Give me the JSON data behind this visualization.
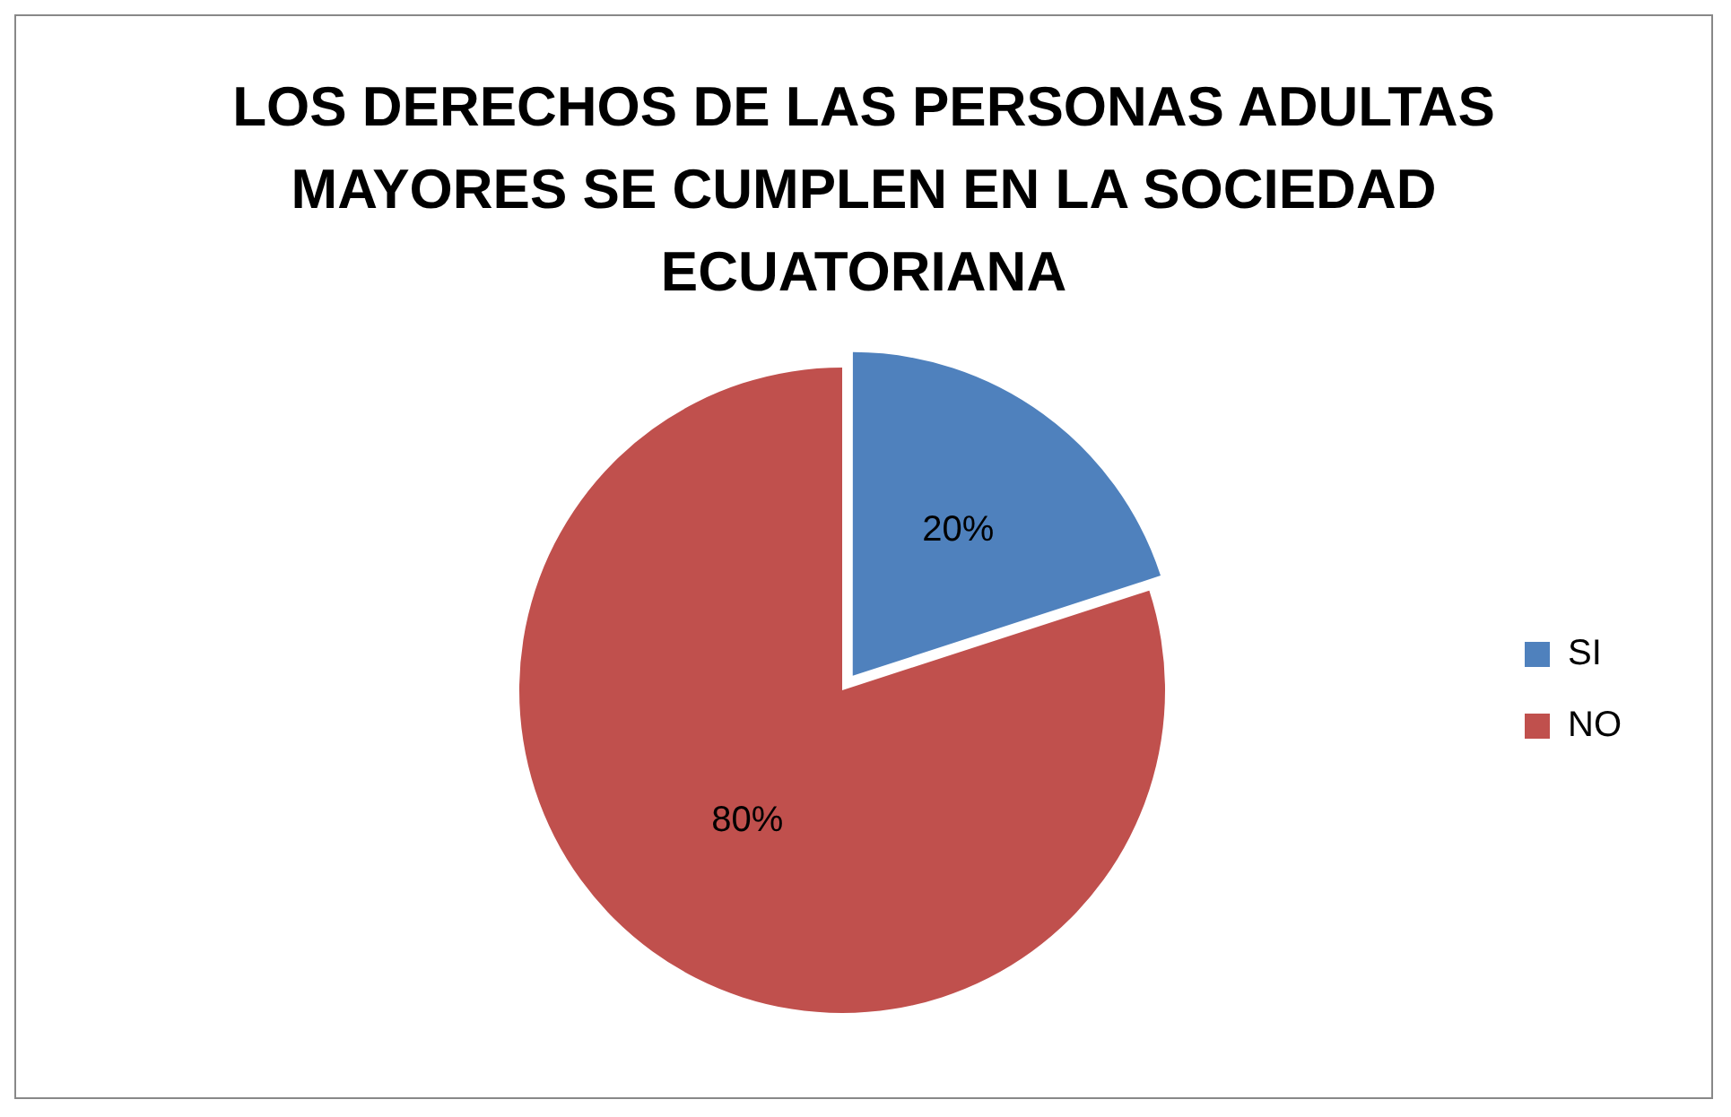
{
  "chart_data": {
    "type": "pie",
    "title": "LOS DERECHOS DE LAS PERSONAS ADULTAS MAYORES SE CUMPLEN EN LA SOCIEDAD ECUATORIANA",
    "categories": [
      "SI",
      "NO"
    ],
    "values": [
      20,
      80
    ],
    "colors": [
      "#4f81bd",
      "#c0504d"
    ],
    "value_labels": [
      "20%",
      "80%"
    ],
    "legend": "right"
  }
}
